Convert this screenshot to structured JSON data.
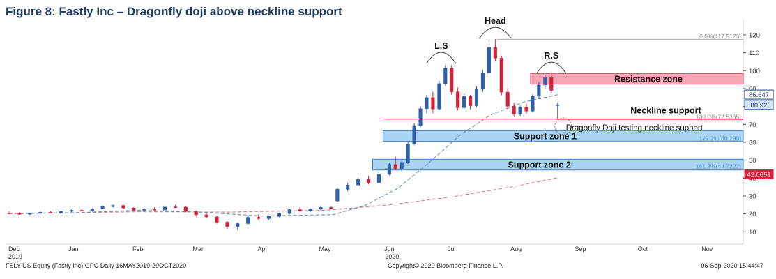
{
  "title": "Figure 8: Fastly Inc – Dragonfly doji above neckline support",
  "footer": {
    "left": "FSLY US Equity (Fastly Inc) GPC  Daily 16MAY2019-29OCT2020",
    "center": "Copyright© 2020 Bloomberg Finance L.P.",
    "right": "06-Sep-2020 15:44:47"
  },
  "colors": {
    "up": "#2f5fa7",
    "down": "#d2233c",
    "zone_red": "#f4a6b4",
    "zone_blue": "#a9d3f2",
    "ma_short": "#6b8fb5",
    "ma_long": "#e07a85",
    "title": "#1f3864"
  },
  "chart_data": {
    "type": "candlestick",
    "ylim": [
      0,
      125
    ],
    "y_ticks": [
      10,
      20,
      30,
      40,
      50,
      60,
      70,
      80,
      90,
      100,
      110,
      120
    ],
    "x_labels": [
      "Dec",
      "Jan",
      "Feb",
      "Mar",
      "Apr",
      "May",
      "Jun",
      "Jul",
      "Aug",
      "Sep",
      "Oct",
      "Nov"
    ],
    "x_year_labels": [
      {
        "month": "Dec",
        "year": "2019"
      },
      {
        "month": "Jun",
        "year": "2020"
      }
    ],
    "last_price_labels": [
      {
        "value": 86.647,
        "text": "86.647",
        "style": "outline"
      },
      {
        "value": 80.92,
        "text": "80.92",
        "style": "blue"
      },
      {
        "value": 42.0651,
        "text": "42.0651",
        "style": "red"
      }
    ],
    "fib_levels": [
      {
        "value": 117.5173,
        "text": "0.0%(117.5173)"
      },
      {
        "value": 72.5365,
        "text": "100.0%(72.5365)"
      },
      {
        "value": 60.289,
        "text": "127.2%(60.289)"
      },
      {
        "value": 44.7222,
        "text": "161.8%(44.7222)"
      }
    ],
    "zones": [
      {
        "label": "Resistance zone",
        "low": 92.5,
        "high": 98.5,
        "from": "2020-08-08",
        "kind": "resistance"
      },
      {
        "label": "Support zone 1",
        "low": 60.5,
        "high": 66.5,
        "from": "2020-05-29",
        "kind": "support"
      },
      {
        "label": "Support zone 2",
        "low": 44.5,
        "high": 50.5,
        "from": "2020-05-24",
        "kind": "support"
      }
    ],
    "neckline": {
      "label": "Neckline support",
      "value": 73,
      "from": "2020-05-29"
    },
    "annotations": [
      {
        "text": "L.S",
        "date": "2020-06-26",
        "value": 104
      },
      {
        "text": "Head",
        "date": "2020-07-22",
        "value": 118
      },
      {
        "text": "R.S",
        "date": "2020-08-18",
        "value": 98.5
      },
      {
        "text": "Dragonfly Doji testing neckline support",
        "date": "2020-08-21",
        "value": 72
      }
    ],
    "candles": [
      {
        "date": "2019-12-01",
        "open": 20.5,
        "high": 21.4,
        "low": 19.8,
        "close": 20.2
      },
      {
        "date": "2019-12-06",
        "open": 20.2,
        "high": 21.0,
        "low": 19.4,
        "close": 19.8
      },
      {
        "date": "2019-12-11",
        "open": 19.8,
        "high": 20.8,
        "low": 19.3,
        "close": 20.4
      },
      {
        "date": "2019-12-16",
        "open": 20.4,
        "high": 21.3,
        "low": 19.9,
        "close": 20.9
      },
      {
        "date": "2019-12-21",
        "open": 20.9,
        "high": 21.6,
        "low": 20.2,
        "close": 20.4
      },
      {
        "date": "2019-12-26",
        "open": 20.4,
        "high": 21.8,
        "low": 20.0,
        "close": 21.4
      },
      {
        "date": "2019-12-31",
        "open": 21.4,
        "high": 22.5,
        "low": 20.9,
        "close": 22.0
      },
      {
        "date": "2020-01-05",
        "open": 22.0,
        "high": 22.7,
        "low": 21.2,
        "close": 21.6
      },
      {
        "date": "2020-01-10",
        "open": 21.6,
        "high": 23.2,
        "low": 21.2,
        "close": 22.8
      },
      {
        "date": "2020-01-15",
        "open": 22.8,
        "high": 24.6,
        "low": 22.4,
        "close": 24.1
      },
      {
        "date": "2020-01-20",
        "open": 24.1,
        "high": 25.3,
        "low": 23.5,
        "close": 24.7
      },
      {
        "date": "2020-01-25",
        "open": 24.7,
        "high": 25.0,
        "low": 22.9,
        "close": 23.3
      },
      {
        "date": "2020-01-30",
        "open": 23.3,
        "high": 23.8,
        "low": 21.6,
        "close": 22.1
      },
      {
        "date": "2020-02-04",
        "open": 22.1,
        "high": 22.9,
        "low": 21.2,
        "close": 22.5
      },
      {
        "date": "2020-02-09",
        "open": 22.5,
        "high": 23.6,
        "low": 21.7,
        "close": 22.1
      },
      {
        "date": "2020-02-14",
        "open": 22.1,
        "high": 24.3,
        "low": 21.8,
        "close": 23.9
      },
      {
        "date": "2020-02-19",
        "open": 23.9,
        "high": 25.1,
        "low": 23.2,
        "close": 23.8
      },
      {
        "date": "2020-02-24",
        "open": 23.8,
        "high": 24.1,
        "low": 20.8,
        "close": 21.3
      },
      {
        "date": "2020-02-29",
        "open": 21.3,
        "high": 22.0,
        "low": 18.6,
        "close": 19.5
      },
      {
        "date": "2020-03-05",
        "open": 19.5,
        "high": 20.5,
        "low": 17.8,
        "close": 18.3
      },
      {
        "date": "2020-03-10",
        "open": 18.3,
        "high": 18.9,
        "low": 14.6,
        "close": 15.4
      },
      {
        "date": "2020-03-15",
        "open": 15.4,
        "high": 16.0,
        "low": 11.6,
        "close": 13.0
      },
      {
        "date": "2020-03-20",
        "open": 13.0,
        "high": 15.2,
        "low": 10.8,
        "close": 14.6
      },
      {
        "date": "2020-03-25",
        "open": 14.6,
        "high": 18.8,
        "low": 14.1,
        "close": 18.1
      },
      {
        "date": "2020-03-30",
        "open": 18.1,
        "high": 19.6,
        "low": 16.8,
        "close": 17.4
      },
      {
        "date": "2020-04-04",
        "open": 17.4,
        "high": 19.1,
        "low": 16.6,
        "close": 18.6
      },
      {
        "date": "2020-04-09",
        "open": 18.6,
        "high": 20.6,
        "low": 18.1,
        "close": 20.2
      },
      {
        "date": "2020-04-14",
        "open": 20.2,
        "high": 22.8,
        "low": 19.8,
        "close": 22.4
      },
      {
        "date": "2020-04-19",
        "open": 22.4,
        "high": 23.6,
        "low": 21.2,
        "close": 21.6
      },
      {
        "date": "2020-04-24",
        "open": 21.6,
        "high": 23.1,
        "low": 21.0,
        "close": 22.6
      },
      {
        "date": "2020-04-29",
        "open": 22.6,
        "high": 24.3,
        "low": 21.9,
        "close": 23.6
      },
      {
        "date": "2020-05-04",
        "open": 23.6,
        "high": 24.2,
        "low": 22.5,
        "close": 23.1
      },
      {
        "date": "2020-05-07",
        "open": 27.2,
        "high": 34.5,
        "low": 26.8,
        "close": 33.8
      },
      {
        "date": "2020-05-12",
        "open": 33.8,
        "high": 37.4,
        "low": 32.6,
        "close": 36.1
      },
      {
        "date": "2020-05-17",
        "open": 36.1,
        "high": 40.2,
        "low": 35.2,
        "close": 39.3
      },
      {
        "date": "2020-05-22",
        "open": 39.3,
        "high": 41.2,
        "low": 36.5,
        "close": 37.4
      },
      {
        "date": "2020-05-27",
        "open": 37.4,
        "high": 43.1,
        "low": 36.8,
        "close": 42.1
      },
      {
        "date": "2020-06-01",
        "open": 42.1,
        "high": 48.4,
        "low": 41.4,
        "close": 47.6
      },
      {
        "date": "2020-06-04",
        "open": 47.6,
        "high": 52.0,
        "low": 44.3,
        "close": 45.2
      },
      {
        "date": "2020-06-07",
        "open": 45.2,
        "high": 49.6,
        "low": 43.8,
        "close": 48.8
      },
      {
        "date": "2020-06-10",
        "open": 48.8,
        "high": 60.2,
        "low": 48.0,
        "close": 59.0
      },
      {
        "date": "2020-06-13",
        "open": 59.0,
        "high": 70.6,
        "low": 58.2,
        "close": 69.3
      },
      {
        "date": "2020-06-16",
        "open": 69.3,
        "high": 80.2,
        "low": 68.4,
        "close": 78.8
      },
      {
        "date": "2020-06-19",
        "open": 78.8,
        "high": 86.5,
        "low": 76.0,
        "close": 85.0
      },
      {
        "date": "2020-06-22",
        "open": 85.0,
        "high": 88.2,
        "low": 76.2,
        "close": 78.6
      },
      {
        "date": "2020-06-25",
        "open": 78.6,
        "high": 94.4,
        "low": 78.0,
        "close": 92.8
      },
      {
        "date": "2020-06-28",
        "open": 92.8,
        "high": 103.0,
        "low": 91.5,
        "close": 101.5
      },
      {
        "date": "2020-07-01",
        "open": 101.5,
        "high": 103.2,
        "low": 86.6,
        "close": 88.2
      },
      {
        "date": "2020-07-04",
        "open": 88.2,
        "high": 90.6,
        "low": 77.8,
        "close": 79.3
      },
      {
        "date": "2020-07-07",
        "open": 79.3,
        "high": 86.8,
        "low": 78.1,
        "close": 85.6
      },
      {
        "date": "2020-07-10",
        "open": 85.6,
        "high": 86.4,
        "low": 78.4,
        "close": 80.4
      },
      {
        "date": "2020-07-13",
        "open": 80.4,
        "high": 91.2,
        "low": 79.5,
        "close": 89.6
      },
      {
        "date": "2020-07-16",
        "open": 89.6,
        "high": 100.4,
        "low": 88.2,
        "close": 98.8
      },
      {
        "date": "2020-07-19",
        "open": 98.8,
        "high": 115.0,
        "low": 97.5,
        "close": 113.0
      },
      {
        "date": "2020-07-22",
        "open": 113.0,
        "high": 117.5,
        "low": 105.0,
        "close": 107.0
      },
      {
        "date": "2020-07-25",
        "open": 107.0,
        "high": 108.4,
        "low": 86.2,
        "close": 88.0
      },
      {
        "date": "2020-07-28",
        "open": 88.0,
        "high": 90.2,
        "low": 78.5,
        "close": 80.1
      },
      {
        "date": "2020-07-31",
        "open": 80.1,
        "high": 82.0,
        "low": 74.2,
        "close": 75.8
      },
      {
        "date": "2020-08-03",
        "open": 75.8,
        "high": 80.4,
        "low": 74.6,
        "close": 79.6
      },
      {
        "date": "2020-08-06",
        "open": 79.6,
        "high": 81.6,
        "low": 76.0,
        "close": 77.4
      },
      {
        "date": "2020-08-09",
        "open": 77.4,
        "high": 86.8,
        "low": 76.8,
        "close": 85.7
      },
      {
        "date": "2020-08-12",
        "open": 85.7,
        "high": 93.6,
        "low": 84.2,
        "close": 92.0
      },
      {
        "date": "2020-08-15",
        "open": 92.0,
        "high": 98.0,
        "low": 89.6,
        "close": 96.1
      },
      {
        "date": "2020-08-18",
        "open": 96.1,
        "high": 99.1,
        "low": 87.6,
        "close": 89.0
      },
      {
        "date": "2020-08-21",
        "open": 80.9,
        "high": 82.2,
        "low": 72.5,
        "close": 80.9
      }
    ],
    "ma_short": [
      {
        "date": "2019-12-01",
        "value": 20.4
      },
      {
        "date": "2020-01-01",
        "value": 20.6
      },
      {
        "date": "2020-02-01",
        "value": 22.0
      },
      {
        "date": "2020-03-01",
        "value": 21.0
      },
      {
        "date": "2020-04-01",
        "value": 18.8
      },
      {
        "date": "2020-05-05",
        "value": 19.6
      },
      {
        "date": "2020-05-20",
        "value": 24.6
      },
      {
        "date": "2020-06-05",
        "value": 34.2
      },
      {
        "date": "2020-06-20",
        "value": 48.5
      },
      {
        "date": "2020-07-05",
        "value": 64.0
      },
      {
        "date": "2020-07-20",
        "value": 75.5
      },
      {
        "date": "2020-08-05",
        "value": 82.5
      },
      {
        "date": "2020-08-21",
        "value": 86.6
      }
    ],
    "ma_long": [
      {
        "date": "2019-12-01",
        "value": 20.1
      },
      {
        "date": "2020-02-01",
        "value": 21.2
      },
      {
        "date": "2020-03-15",
        "value": 21.0
      },
      {
        "date": "2020-05-01",
        "value": 22.0
      },
      {
        "date": "2020-06-01",
        "value": 25.0
      },
      {
        "date": "2020-07-01",
        "value": 29.5
      },
      {
        "date": "2020-08-01",
        "value": 35.5
      },
      {
        "date": "2020-08-21",
        "value": 40.2
      }
    ]
  }
}
